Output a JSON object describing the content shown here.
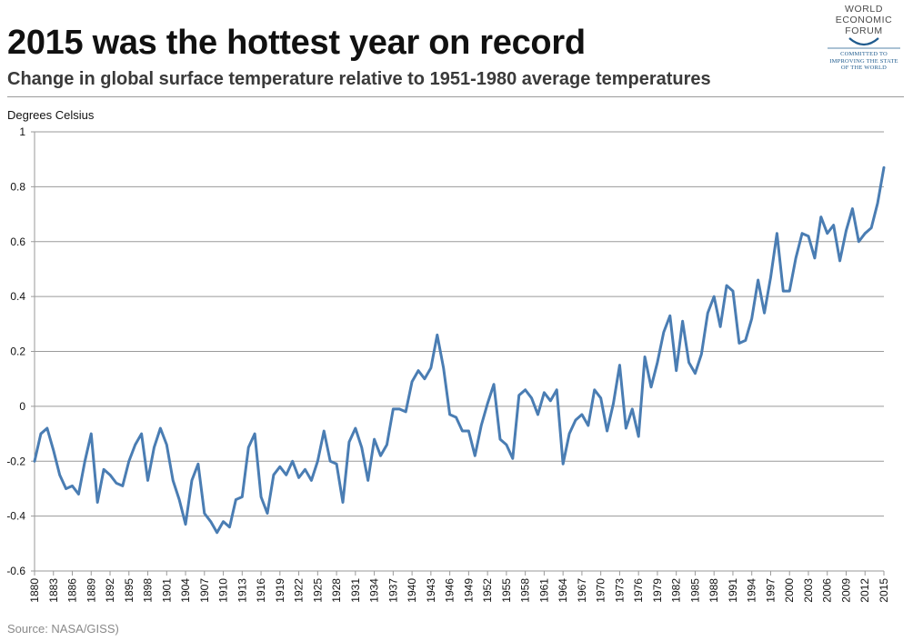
{
  "header": {
    "title": "2015 was the hottest year on record",
    "subtitle": "Change in global surface temperature relative to 1951-1980 average temperatures"
  },
  "logo": {
    "words": [
      "WORLD",
      "ECONOMIC",
      "FORUM"
    ],
    "tagline": [
      "COMMITTED TO",
      "IMPROVING THE STATE",
      "OF THE WORLD"
    ],
    "color": "#1f5b8e"
  },
  "source": "Source:  NASA/GISS)",
  "chart_data": {
    "type": "line",
    "ylabel": "Degrees Celsius",
    "xlabel": "",
    "ylim": [
      -0.6,
      1
    ],
    "yticks": [
      1,
      0.8,
      0.6,
      0.4,
      0.2,
      0,
      -0.2,
      -0.4,
      -0.6
    ],
    "xlim": [
      1880,
      2015
    ],
    "xtick_labels": [
      "1880",
      "1883",
      "1886",
      "1889",
      "1892",
      "1895",
      "1898",
      "1901",
      "1904",
      "1907",
      "1910",
      "1913",
      "1916",
      "1919",
      "1922",
      "1925",
      "1928",
      "1931",
      "1934",
      "1937",
      "1940",
      "1943",
      "1946",
      "1949",
      "1952",
      "1955",
      "1958",
      "1961",
      "1964",
      "1967",
      "1970",
      "1973",
      "1976",
      "1979",
      "1982",
      "1985",
      "1988",
      "1991",
      "1994",
      "1997",
      "2000",
      "2003",
      "2006",
      "2009",
      "2012",
      "2015"
    ],
    "grid": true,
    "line_color": "#4a7db3",
    "series": [
      {
        "x": [
          1880,
          1881,
          1882,
          1883,
          1884,
          1885,
          1886,
          1887,
          1888,
          1889,
          1890,
          1891,
          1892,
          1893,
          1894,
          1895,
          1896,
          1897,
          1898,
          1899,
          1900,
          1901,
          1902,
          1903,
          1904,
          1905,
          1906,
          1907,
          1908,
          1909,
          1910,
          1911,
          1912,
          1913,
          1914,
          1915,
          1916,
          1917,
          1918,
          1919,
          1920,
          1921,
          1922,
          1923,
          1924,
          1925,
          1926,
          1927,
          1928,
          1929,
          1930,
          1931,
          1932,
          1933,
          1934,
          1935,
          1936,
          1937,
          1938,
          1939,
          1940,
          1941,
          1942,
          1943,
          1944,
          1945,
          1946,
          1947,
          1948,
          1949,
          1950,
          1951,
          1952,
          1953,
          1954,
          1955,
          1956,
          1957,
          1958,
          1959,
          1960,
          1961,
          1962,
          1963,
          1964,
          1965,
          1966,
          1967,
          1968,
          1969,
          1970,
          1971,
          1972,
          1973,
          1974,
          1975,
          1976,
          1977,
          1978,
          1979,
          1980,
          1981,
          1982,
          1983,
          1984,
          1985,
          1986,
          1987,
          1988,
          1989,
          1990,
          1991,
          1992,
          1993,
          1994,
          1995,
          1996,
          1997,
          1998,
          1999,
          2000,
          2001,
          2002,
          2003,
          2004,
          2005,
          2006,
          2007,
          2008,
          2009,
          2010,
          2011,
          2012,
          2013,
          2014,
          2015
        ],
        "y": [
          -0.2,
          -0.1,
          -0.08,
          -0.16,
          -0.25,
          -0.3,
          -0.29,
          -0.32,
          -0.2,
          -0.1,
          -0.35,
          -0.23,
          -0.25,
          -0.28,
          -0.29,
          -0.2,
          -0.14,
          -0.1,
          -0.27,
          -0.15,
          -0.08,
          -0.14,
          -0.27,
          -0.34,
          -0.43,
          -0.27,
          -0.21,
          -0.39,
          -0.42,
          -0.46,
          -0.42,
          -0.44,
          -0.34,
          -0.33,
          -0.15,
          -0.1,
          -0.33,
          -0.39,
          -0.25,
          -0.22,
          -0.25,
          -0.2,
          -0.26,
          -0.23,
          -0.27,
          -0.2,
          -0.09,
          -0.2,
          -0.21,
          -0.35,
          -0.13,
          -0.08,
          -0.15,
          -0.27,
          -0.12,
          -0.18,
          -0.14,
          -0.01,
          -0.01,
          -0.02,
          0.09,
          0.13,
          0.1,
          0.14,
          0.26,
          0.14,
          -0.03,
          -0.04,
          -0.09,
          -0.09,
          -0.18,
          -0.07,
          0.01,
          0.08,
          -0.12,
          -0.14,
          -0.19,
          0.04,
          0.06,
          0.03,
          -0.03,
          0.05,
          0.02,
          0.06,
          -0.21,
          -0.1,
          -0.05,
          -0.03,
          -0.07,
          0.06,
          0.03,
          -0.09,
          0.01,
          0.15,
          -0.08,
          -0.01,
          -0.11,
          0.18,
          0.07,
          0.16,
          0.27,
          0.33,
          0.13,
          0.31,
          0.16,
          0.12,
          0.19,
          0.34,
          0.4,
          0.29,
          0.44,
          0.42,
          0.23,
          0.24,
          0.32,
          0.46,
          0.34,
          0.47,
          0.63,
          0.42,
          0.42,
          0.54,
          0.63,
          0.62,
          0.54,
          0.69,
          0.63,
          0.66,
          0.53,
          0.64,
          0.72,
          0.6,
          0.63,
          0.65,
          0.74,
          0.87
        ]
      }
    ]
  }
}
